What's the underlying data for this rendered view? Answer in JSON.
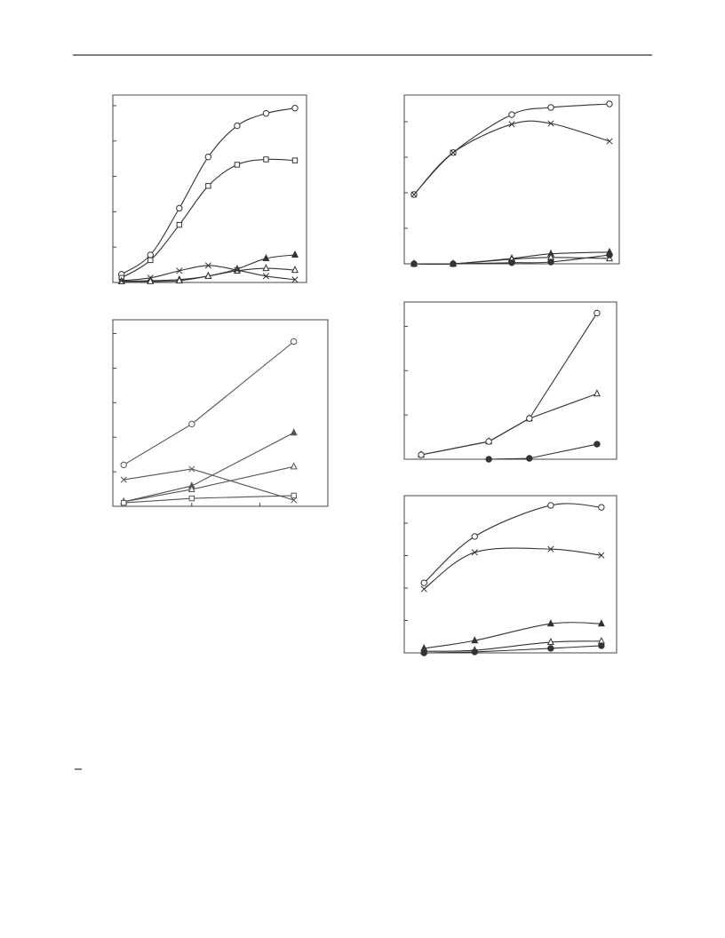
{
  "chart_data": [
    {
      "type": "line",
      "smooth": true,
      "color": "#333333",
      "xlim": [
        -0.3,
        6.4
      ],
      "ylim": [
        0,
        5.3
      ],
      "yticks": [
        0,
        1,
        2,
        3,
        4,
        5
      ],
      "x": [
        0,
        1,
        2,
        3,
        4,
        5,
        6
      ],
      "series": [
        {
          "marker": "circle",
          "values": [
            0.23,
            0.78,
            2.1,
            3.55,
            4.43,
            4.78,
            4.93
          ]
        },
        {
          "marker": "square",
          "values": [
            0.13,
            0.63,
            1.63,
            2.73,
            3.33,
            3.48,
            3.45
          ]
        },
        {
          "marker": "triangle-filled",
          "values": [
            0.03,
            0.05,
            0.08,
            0.18,
            0.38,
            0.68,
            0.78
          ]
        },
        {
          "marker": "triangle",
          "values": [
            0.03,
            0.03,
            0.05,
            0.18,
            0.33,
            0.4,
            0.35
          ]
        },
        {
          "marker": "cross",
          "values": [
            0.05,
            0.13,
            0.33,
            0.48,
            0.35,
            0.18,
            0.08
          ]
        }
      ]
    },
    {
      "type": "line",
      "smooth": false,
      "color": "#555555",
      "xlim": [
        -0.16,
        3.0
      ],
      "ylim": [
        0,
        5.4
      ],
      "yticks": [
        0,
        1,
        2,
        3,
        4,
        5
      ],
      "xticks": [
        1,
        2
      ],
      "x": [
        0,
        1,
        2.5
      ],
      "series": [
        {
          "marker": "circle",
          "values": [
            1.2,
            2.38,
            4.77
          ]
        },
        {
          "marker": "cross",
          "values": [
            0.77,
            1.08,
            0.18
          ]
        },
        {
          "marker": "triangle-filled",
          "values": [
            0.13,
            0.59,
            2.13
          ]
        },
        {
          "marker": "triangle",
          "values": [
            0.13,
            0.49,
            1.15
          ]
        },
        {
          "marker": "square",
          "values": [
            0.1,
            0.23,
            0.31
          ]
        }
      ]
    },
    {
      "type": "line",
      "smooth": true,
      "color": "#333333",
      "xlim": [
        -0.25,
        5.25
      ],
      "ylim": [
        0,
        4.75
      ],
      "yticks": [
        0,
        1,
        2,
        3,
        4
      ],
      "x": [
        0,
        1,
        2.5,
        3.5,
        5
      ],
      "series": [
        {
          "marker": "circle",
          "values": [
            1.95,
            3.13,
            4.2,
            4.4,
            4.5
          ]
        },
        {
          "marker": "cross",
          "values": [
            1.95,
            3.13,
            3.93,
            3.95,
            3.45
          ]
        },
        {
          "marker": "triangle-filled",
          "values": [
            0,
            0,
            0.15,
            0.28,
            0.33
          ]
        },
        {
          "marker": "triangle",
          "values": [
            0,
            0,
            0.13,
            0.18,
            0.15
          ]
        },
        {
          "marker": "dot",
          "values": [
            0,
            0,
            0.03,
            0.05,
            0.25
          ]
        }
      ]
    },
    {
      "type": "line",
      "smooth": false,
      "color": "#333333",
      "xlim": [
        -0.25,
        2.89
      ],
      "ylim": [
        0,
        3.55
      ],
      "yticks": [
        0,
        1,
        2,
        3
      ],
      "x": [
        0,
        1,
        1.6,
        2.6
      ],
      "series": [
        {
          "marker": "triangle",
          "values": [
            0.1,
            0.4,
            0.92,
            1.48
          ]
        },
        {
          "marker": "circle",
          "values": [
            0.1,
            0.4,
            0.92,
            3.3
          ]
        },
        {
          "marker": "dot",
          "values": [
            null,
            0,
            0.02,
            0.34
          ]
        }
      ]
    },
    {
      "type": "line",
      "smooth": true,
      "color": "#333333",
      "xlim": [
        -0.39,
        3.8
      ],
      "ylim": [
        0,
        4.85
      ],
      "yticks": [
        0,
        1,
        2,
        3,
        4
      ],
      "x": [
        0,
        1,
        2.5,
        3.5
      ],
      "series": [
        {
          "marker": "circle",
          "values": [
            2.16,
            3.59,
            4.55,
            4.49
          ]
        },
        {
          "marker": "cross",
          "values": [
            1.97,
            3.1,
            3.2,
            3.01
          ]
        },
        {
          "marker": "triangle-filled",
          "values": [
            0.14,
            0.38,
            0.9,
            0.9
          ]
        },
        {
          "marker": "triangle",
          "values": [
            0.05,
            0.08,
            0.33,
            0.36
          ]
        },
        {
          "marker": "dot",
          "values": [
            0,
            0.03,
            0.14,
            0.22
          ]
        }
      ]
    }
  ]
}
